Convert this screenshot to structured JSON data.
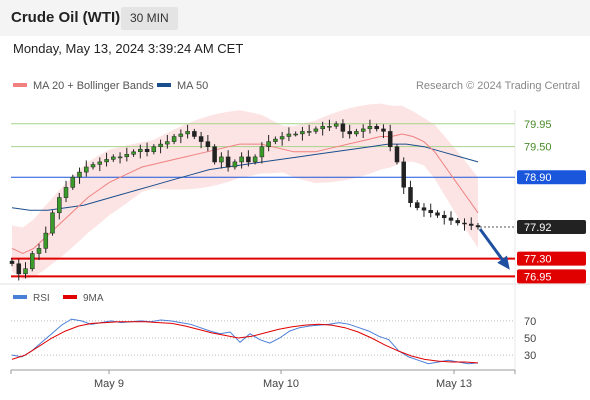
{
  "header": {
    "instrument": "Crude Oil (WTI)",
    "timeframe": "30 MIN"
  },
  "timestamp": "Monday, May 13, 2024 3:39:24 AM CET",
  "legend": {
    "ma20_label": "MA 20 + Bollinger Bands",
    "ma50_label": "MA 50",
    "credit": "Research © 2024 Trading Central"
  },
  "rsi_legend": {
    "rsi_label": "RSI",
    "ma_label": "9MA"
  },
  "colors": {
    "ma20": "#f08080",
    "ma50": "#1a4e8c",
    "band_fill": "#fde4e4",
    "support": "#e00000",
    "pivot": "#1a56db",
    "resistance": "#a6d38a",
    "arrow": "#1f4fa0",
    "price_box": "#222222",
    "rsi": "#4a7fd8",
    "rsi_ma": "#e00000"
  },
  "chart_data": {
    "type": "candlestick",
    "price_axis": {
      "range": [
        76.8,
        80.3
      ]
    },
    "x_axis": {
      "labels": [
        "May 9",
        "May 10",
        "May 13"
      ]
    },
    "levels": [
      {
        "value": 79.95,
        "label": "79.95",
        "kind": "resistance"
      },
      {
        "value": 79.5,
        "label": "79.50",
        "kind": "resistance"
      },
      {
        "value": 78.9,
        "label": "78.90",
        "kind": "pivot"
      },
      {
        "value": 77.92,
        "label": "77.92",
        "kind": "last"
      },
      {
        "value": 77.3,
        "label": "77.30",
        "kind": "support"
      },
      {
        "value": 76.95,
        "label": "76.95",
        "kind": "support"
      }
    ],
    "forecast_arrow": {
      "from": 77.92,
      "to": 77.05
    },
    "closes": [
      77.2,
      77.0,
      77.1,
      77.4,
      77.5,
      77.8,
      78.2,
      78.5,
      78.7,
      78.9,
      79.0,
      79.1,
      79.15,
      79.2,
      79.25,
      79.3,
      79.3,
      79.35,
      79.4,
      79.45,
      79.4,
      79.5,
      79.55,
      79.6,
      79.7,
      79.75,
      79.8,
      79.7,
      79.6,
      79.5,
      79.2,
      79.3,
      79.1,
      79.2,
      79.3,
      79.2,
      79.3,
      79.5,
      79.6,
      79.65,
      79.7,
      79.75,
      79.75,
      79.8,
      79.8,
      79.85,
      79.9,
      79.9,
      79.95,
      79.8,
      79.75,
      79.8,
      79.85,
      79.9,
      79.85,
      79.8,
      79.5,
      79.2,
      78.7,
      78.4,
      78.3,
      78.25,
      78.2,
      78.15,
      78.1,
      78.05,
      78.0,
      77.98,
      77.95,
      77.92
    ],
    "ma20": [
      77.5,
      77.4,
      77.5,
      77.7,
      77.9,
      78.1,
      78.3,
      78.5,
      78.65,
      78.8,
      78.9,
      79.0,
      79.1,
      79.15,
      79.2,
      79.25,
      79.3,
      79.35,
      79.4,
      79.45,
      79.5,
      79.55,
      79.55,
      79.55,
      79.5,
      79.45,
      79.4,
      79.4,
      79.4,
      79.45,
      79.5,
      79.55,
      79.6,
      79.65,
      79.7,
      79.7,
      79.75,
      79.7,
      79.6,
      79.4,
      79.1,
      78.8,
      78.5,
      78.2
    ],
    "ma50": [
      78.3,
      78.25,
      78.25,
      78.3,
      78.35,
      78.45,
      78.55,
      78.65,
      78.75,
      78.85,
      78.95,
      79.05,
      79.1,
      79.15,
      79.2,
      79.25,
      79.3,
      79.35,
      79.4,
      79.45,
      79.5,
      79.55,
      79.55,
      79.5,
      79.4,
      79.3,
      79.2
    ],
    "rsi_axis": {
      "ticks": [
        70,
        50,
        30
      ],
      "range": [
        15,
        85
      ]
    },
    "rsi": [
      30,
      28,
      35,
      45,
      55,
      65,
      72,
      70,
      66,
      68,
      70,
      68,
      69,
      70,
      69,
      71,
      70,
      68,
      66,
      62,
      58,
      55,
      57,
      45,
      55,
      48,
      44,
      50,
      58,
      62,
      64,
      65,
      66,
      68,
      66,
      62,
      58,
      52,
      48,
      35,
      28,
      24,
      20,
      22,
      24,
      22,
      20,
      21
    ],
    "rsi_ma": [
      25,
      30,
      40,
      50,
      58,
      64,
      67,
      68,
      69,
      69,
      69,
      68,
      67,
      64,
      60,
      56,
      53,
      50,
      52,
      56,
      60,
      63,
      65,
      66,
      65,
      62,
      57,
      50,
      42,
      35,
      29,
      25,
      23,
      22,
      22,
      21
    ]
  }
}
